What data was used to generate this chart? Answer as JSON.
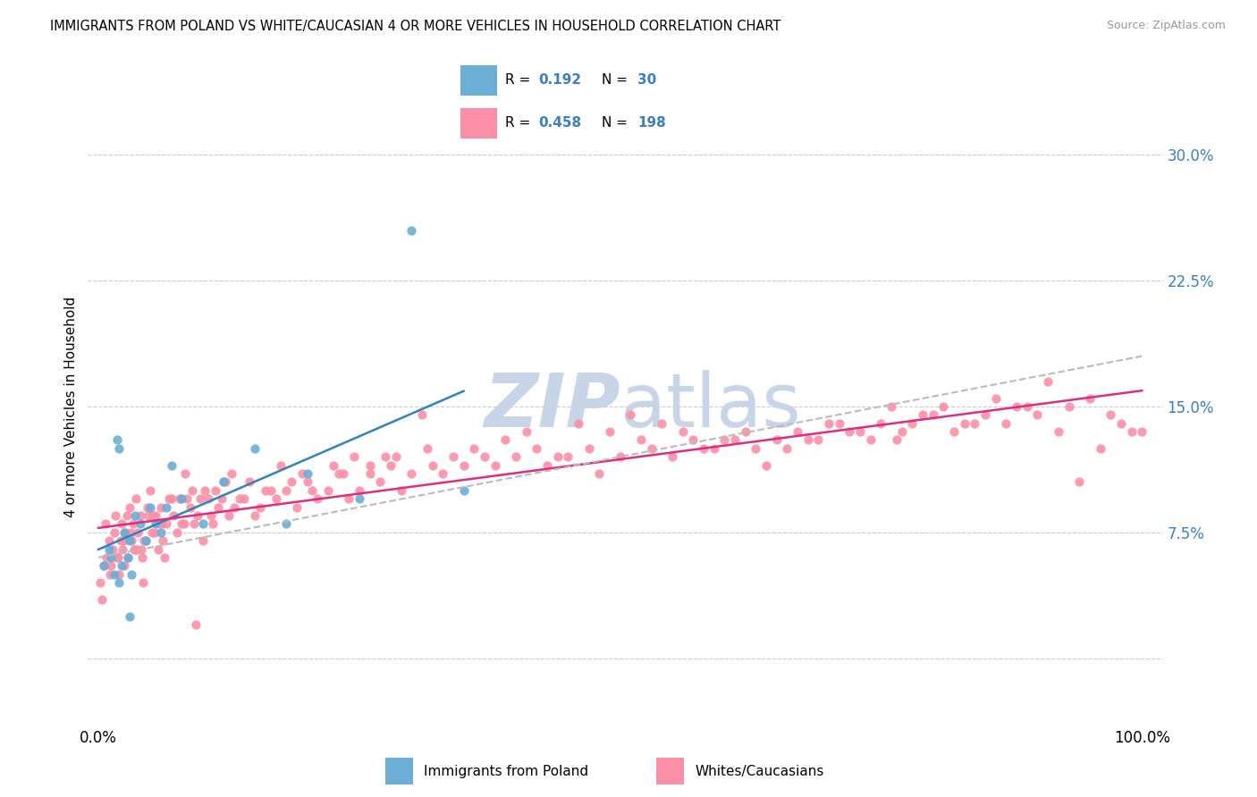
{
  "title": "IMMIGRANTS FROM POLAND VS WHITE/CAUCASIAN 4 OR MORE VEHICLES IN HOUSEHOLD CORRELATION CHART",
  "source": "Source: ZipAtlas.com",
  "ylabel": "4 or more Vehicles in Household",
  "background_color": "#ffffff",
  "grid_color": "#cccccc",
  "blue_color": "#6baed6",
  "pink_color": "#fc8fa8",
  "trend_blue_color": "#3182bd",
  "trend_pink_color": "#de2d7f",
  "trend_dash_color": "#bbbbbb",
  "watermark": "ZIPatlas",
  "watermark_color": "#c8d4e8",
  "blue_scatter_x": [
    0.5,
    1.0,
    1.5,
    2.0,
    2.5,
    3.0,
    3.5,
    4.0,
    5.0,
    6.0,
    7.0,
    8.0,
    10.0,
    12.0,
    15.0,
    18.0,
    20.0,
    25.0,
    30.0,
    35.0,
    1.2,
    2.2,
    2.8,
    3.2,
    4.5,
    5.5,
    6.5,
    1.8,
    2.0,
    3.0
  ],
  "blue_scatter_y": [
    5.5,
    6.5,
    5.0,
    4.5,
    7.5,
    7.0,
    8.5,
    8.0,
    9.0,
    7.5,
    11.5,
    9.5,
    8.0,
    10.5,
    12.5,
    8.0,
    11.0,
    9.5,
    25.5,
    10.0,
    6.0,
    5.5,
    6.0,
    5.0,
    7.0,
    8.0,
    9.0,
    13.0,
    12.5,
    2.5
  ],
  "pink_scatter_x": [
    0.2,
    0.5,
    0.8,
    1.0,
    1.2,
    1.5,
    1.8,
    2.0,
    2.3,
    2.5,
    2.8,
    3.0,
    3.3,
    3.5,
    3.8,
    4.0,
    4.5,
    5.0,
    5.5,
    6.0,
    6.5,
    7.0,
    7.5,
    8.0,
    9.0,
    10.0,
    11.0,
    12.0,
    13.0,
    14.0,
    15.0,
    16.0,
    17.0,
    18.0,
    19.0,
    20.0,
    21.0,
    22.0,
    23.0,
    24.0,
    25.0,
    26.0,
    27.0,
    28.0,
    29.0,
    30.0,
    32.0,
    33.0,
    35.0,
    37.0,
    38.0,
    40.0,
    42.0,
    43.0,
    45.0,
    47.0,
    48.0,
    50.0,
    52.0,
    53.0,
    55.0,
    57.0,
    58.0,
    60.0,
    62.0,
    63.0,
    65.0,
    67.0,
    68.0,
    70.0,
    72.0,
    75.0,
    77.0,
    78.0,
    80.0,
    82.0,
    83.0,
    85.0,
    87.0,
    88.0,
    90.0,
    92.0,
    93.0,
    95.0,
    97.0,
    98.0,
    99.0,
    100.0,
    0.3,
    0.7,
    1.1,
    1.4,
    1.6,
    1.9,
    2.1,
    2.2,
    2.4,
    2.6,
    2.7,
    3.1,
    3.2,
    3.4,
    3.6,
    3.7,
    4.1,
    4.2,
    4.4,
    4.7,
    4.8,
    5.1,
    5.2,
    5.4,
    5.7,
    5.8,
    6.1,
    6.2,
    6.8,
    7.2,
    7.8,
    8.2,
    8.5,
    8.8,
    9.2,
    9.5,
    9.8,
    10.2,
    10.5,
    10.8,
    11.2,
    11.5,
    11.8,
    12.2,
    12.5,
    12.8,
    13.5,
    14.5,
    15.5,
    16.5,
    17.5,
    18.5,
    19.5,
    20.5,
    22.5,
    23.5,
    24.5,
    26.0,
    28.5,
    31.5,
    34.0,
    36.0,
    39.0,
    41.0,
    44.0,
    46.0,
    49.0,
    51.0,
    54.0,
    56.0,
    59.0,
    61.0,
    64.0,
    66.0,
    69.0,
    71.0,
    73.0,
    76.0,
    79.0,
    81.0,
    84.0,
    86.0,
    89.0,
    91.0,
    94.0,
    96.0,
    4.3,
    6.3,
    8.3,
    9.3,
    27.5,
    31.0,
    74.0,
    76.5
  ],
  "pink_scatter_y": [
    4.5,
    5.5,
    6.0,
    7.0,
    5.5,
    7.5,
    6.0,
    5.0,
    6.5,
    5.5,
    6.0,
    9.0,
    8.0,
    6.5,
    7.5,
    8.5,
    7.0,
    10.0,
    8.5,
    9.0,
    8.0,
    9.5,
    7.5,
    8.0,
    10.0,
    7.0,
    8.0,
    10.5,
    9.0,
    9.5,
    8.5,
    10.0,
    9.5,
    10.0,
    9.0,
    10.5,
    9.5,
    10.0,
    11.0,
    9.5,
    10.0,
    11.0,
    10.5,
    11.5,
    10.0,
    11.0,
    11.5,
    11.0,
    11.5,
    12.0,
    11.5,
    12.0,
    12.5,
    11.5,
    12.0,
    12.5,
    11.0,
    12.0,
    13.0,
    12.5,
    12.0,
    13.0,
    12.5,
    13.0,
    13.5,
    12.5,
    13.0,
    13.5,
    13.0,
    14.0,
    13.5,
    14.0,
    13.5,
    14.0,
    14.5,
    13.5,
    14.0,
    14.5,
    14.0,
    15.0,
    14.5,
    13.5,
    15.0,
    15.5,
    14.5,
    14.0,
    13.5,
    13.5,
    3.5,
    8.0,
    5.0,
    6.5,
    8.5,
    6.0,
    7.0,
    8.0,
    7.0,
    7.5,
    8.5,
    7.5,
    7.0,
    6.5,
    9.5,
    6.5,
    6.5,
    6.0,
    7.0,
    9.0,
    8.5,
    7.5,
    8.5,
    7.5,
    6.5,
    8.0,
    8.0,
    7.0,
    9.5,
    8.5,
    9.5,
    8.0,
    9.5,
    9.0,
    8.0,
    8.5,
    9.5,
    10.0,
    9.5,
    8.5,
    10.0,
    9.0,
    9.5,
    10.5,
    8.5,
    11.0,
    9.5,
    10.5,
    9.0,
    10.0,
    11.5,
    10.5,
    11.0,
    10.0,
    11.5,
    11.0,
    12.0,
    11.5,
    12.0,
    12.5,
    12.0,
    12.5,
    13.0,
    13.5,
    12.0,
    14.0,
    13.5,
    14.5,
    14.0,
    13.5,
    12.5,
    13.0,
    11.5,
    12.5,
    13.0,
    14.0,
    13.5,
    15.0,
    14.5,
    15.0,
    14.0,
    15.5,
    15.0,
    16.5,
    10.5,
    12.5,
    4.5,
    6.0,
    11.0,
    2.0,
    12.0,
    14.5,
    13.0,
    13.0
  ]
}
